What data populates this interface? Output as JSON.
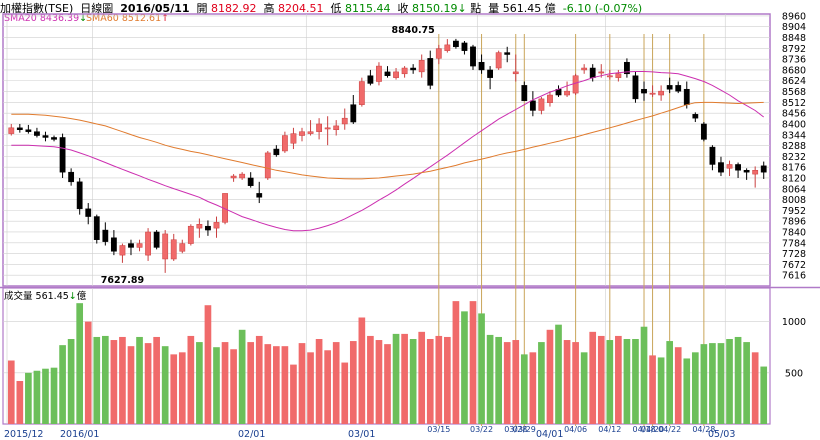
{
  "header": {
    "name": "加權指數(TSE)",
    "period": "日線圖",
    "date": "2016/05/11",
    "open_label": "開",
    "open": "8182.92",
    "high_label": "高",
    "high": "8204.51",
    "low_label": "低",
    "low": "8115.44",
    "close_label": "收",
    "close": "8150.19",
    "close_arrow": "↓",
    "unit": "點",
    "volume_label": "量",
    "volume": "561.45 億",
    "change": "-6.10 (-0.07%)"
  },
  "legend": {
    "sma20_label": "SMA20",
    "sma20_value": "8436.39",
    "sma20_arrow": "↓",
    "sma20_color": "#cc2fb0",
    "sma60_label": "SMA60",
    "sma60_value": "8512.61",
    "sma60_arrow": "↑",
    "sma60_color": "#e07b2e",
    "volume_label": "成交量",
    "volume_value": "561.45",
    "volume_arrow": "↓",
    "volume_unit": "億"
  },
  "colors": {
    "up": "#f06a6a",
    "down": "#000000",
    "vol_up": "#f06a6a",
    "vol_down": "#6cbf5a",
    "grid": "#cfcfcf",
    "event_line": "#c9a55a",
    "frame": "#b07ac8"
  },
  "chart_data": [
    {
      "type": "candlestick",
      "title": "加權指數(TSE) 日線圖",
      "y_ticks": [
        8960,
        8904,
        8848,
        8792,
        8736,
        8680,
        8624,
        8568,
        8512,
        8456,
        8400,
        8344,
        8288,
        8232,
        8176,
        8120,
        8064,
        8008,
        7952,
        7896,
        7840,
        7784,
        7728,
        7672,
        7616
      ],
      "ylim": [
        7560,
        8970
      ],
      "x_labels": [
        "2015/12",
        "2016/01",
        "02/01",
        "03/01",
        "04/01",
        "05/03"
      ],
      "annotations": [
        {
          "text": "8840.75",
          "x": 47,
          "y": 8840.75
        },
        {
          "text": "7627.89",
          "x": 13,
          "y": 7627.89
        }
      ],
      "ohlc": [
        [
          8350,
          8400,
          8340,
          8380
        ],
        [
          8380,
          8400,
          8355,
          8370
        ],
        [
          8370,
          8395,
          8350,
          8360
        ],
        [
          8360,
          8380,
          8330,
          8340
        ],
        [
          8340,
          8360,
          8310,
          8330
        ],
        [
          8330,
          8340,
          8310,
          8320
        ],
        [
          8330,
          8350,
          8120,
          8150
        ],
        [
          8150,
          8170,
          8080,
          8100
        ],
        [
          8100,
          8120,
          7930,
          7960
        ],
        [
          7960,
          7990,
          7880,
          7920
        ],
        [
          7920,
          7930,
          7780,
          7800
        ],
        [
          7850,
          7890,
          7770,
          7790
        ],
        [
          7810,
          7850,
          7720,
          7740
        ],
        [
          7720,
          7780,
          7680,
          7770
        ],
        [
          7780,
          7800,
          7720,
          7760
        ],
        [
          7760,
          7800,
          7740,
          7780
        ],
        [
          7720,
          7860,
          7690,
          7840
        ],
        [
          7840,
          7850,
          7750,
          7760
        ],
        [
          7700,
          7850,
          7628,
          7830
        ],
        [
          7700,
          7830,
          7690,
          7800
        ],
        [
          7740,
          7800,
          7730,
          7780
        ],
        [
          7780,
          7880,
          7770,
          7870
        ],
        [
          7860,
          7910,
          7810,
          7880
        ],
        [
          7870,
          7900,
          7820,
          7850
        ],
        [
          7860,
          7920,
          7810,
          7890
        ],
        [
          7890,
          8040,
          7880,
          8040
        ],
        [
          8120,
          8140,
          8100,
          8130
        ],
        [
          8120,
          8150,
          8110,
          8140
        ],
        [
          8120,
          8150,
          8070,
          8080
        ],
        [
          8040,
          8100,
          7990,
          8020
        ],
        [
          8120,
          8260,
          8110,
          8250
        ],
        [
          8270,
          8290,
          8230,
          8240
        ],
        [
          8260,
          8360,
          8250,
          8340
        ],
        [
          8300,
          8380,
          8270,
          8350
        ],
        [
          8340,
          8380,
          8310,
          8360
        ],
        [
          8350,
          8420,
          8340,
          8360
        ],
        [
          8360,
          8430,
          8320,
          8400
        ],
        [
          8380,
          8440,
          8290,
          8380
        ],
        [
          8370,
          8420,
          8340,
          8390
        ],
        [
          8400,
          8480,
          8370,
          8430
        ],
        [
          8500,
          8550,
          8400,
          8410
        ],
        [
          8500,
          8640,
          8490,
          8620
        ],
        [
          8650,
          8680,
          8600,
          8610
        ],
        [
          8620,
          8720,
          8600,
          8700
        ],
        [
          8670,
          8700,
          8640,
          8650
        ],
        [
          8640,
          8690,
          8630,
          8670
        ],
        [
          8660,
          8700,
          8640,
          8690
        ],
        [
          8690,
          8710,
          8660,
          8680
        ],
        [
          8670,
          8760,
          8640,
          8730
        ],
        [
          8740,
          8780,
          8580,
          8600
        ],
        [
          8740,
          8810,
          8710,
          8790
        ],
        [
          8780,
          8840,
          8770,
          8810
        ],
        [
          8830,
          8841,
          8790,
          8800
        ],
        [
          8820,
          8830,
          8760,
          8780
        ],
        [
          8800,
          8810,
          8680,
          8700
        ],
        [
          8720,
          8760,
          8660,
          8680
        ],
        [
          8680,
          8700,
          8580,
          8640
        ],
        [
          8690,
          8780,
          8680,
          8770
        ],
        [
          8770,
          8800,
          8720,
          8760
        ],
        [
          8660,
          8760,
          8620,
          8670
        ],
        [
          8600,
          8620,
          8520,
          8520
        ],
        [
          8520,
          8570,
          8440,
          8470
        ],
        [
          8470,
          8540,
          8450,
          8530
        ],
        [
          8510,
          8570,
          8490,
          8550
        ],
        [
          8580,
          8600,
          8540,
          8550
        ],
        [
          8550,
          8620,
          8540,
          8570
        ],
        [
          8560,
          8660,
          8550,
          8650
        ],
        [
          8680,
          8710,
          8660,
          8690
        ],
        [
          8690,
          8710,
          8620,
          8640
        ],
        [
          8670,
          8710,
          8640,
          8670
        ],
        [
          8650,
          8680,
          8630,
          8650
        ],
        [
          8640,
          8680,
          8620,
          8660
        ],
        [
          8720,
          8740,
          8640,
          8660
        ],
        [
          8650,
          8670,
          8510,
          8530
        ],
        [
          8580,
          8620,
          8520,
          8560
        ],
        [
          8560,
          8600,
          8540,
          8560
        ],
        [
          8550,
          8600,
          8520,
          8570
        ],
        [
          8600,
          8640,
          8560,
          8580
        ],
        [
          8600,
          8620,
          8560,
          8570
        ],
        [
          8580,
          8620,
          8480,
          8500
        ],
        [
          8450,
          8460,
          8410,
          8430
        ],
        [
          8400,
          8410,
          8310,
          8320
        ],
        [
          8280,
          8290,
          8160,
          8190
        ],
        [
          8200,
          8230,
          8130,
          8150
        ],
        [
          8170,
          8210,
          8130,
          8190
        ],
        [
          8190,
          8200,
          8120,
          8160
        ],
        [
          8160,
          8170,
          8110,
          8150
        ],
        [
          8140,
          8180,
          8070,
          8160
        ],
        [
          8183,
          8205,
          8115,
          8150
        ]
      ],
      "series": [
        {
          "name": "SMA20",
          "values": [
            8290,
            8290,
            8290,
            8287,
            8284,
            8282,
            8275,
            8265,
            8250,
            8235,
            8218,
            8200,
            8182,
            8165,
            8148,
            8131,
            8113,
            8097,
            8080,
            8065,
            8050,
            8035,
            8020,
            7998,
            7980,
            7960,
            7940,
            7920,
            7905,
            7890,
            7876,
            7864,
            7853,
            7846,
            7846,
            7850,
            7860,
            7873,
            7888,
            7908,
            7930,
            7952,
            7978,
            8005,
            8030,
            8058,
            8088,
            8118,
            8148,
            8178,
            8208,
            8238,
            8270,
            8303,
            8335,
            8365,
            8395,
            8425,
            8450,
            8475,
            8500,
            8525,
            8545,
            8565,
            8580,
            8598,
            8612,
            8625,
            8640,
            8650,
            8660,
            8665,
            8670,
            8672,
            8672,
            8670,
            8666,
            8664,
            8660,
            8648,
            8635,
            8620,
            8600,
            8575,
            8550,
            8520,
            8495,
            8470,
            8436
          ]
        },
        {
          "name": "SMA60",
          "values": [
            8450,
            8450,
            8450,
            8448,
            8445,
            8440,
            8435,
            8428,
            8420,
            8410,
            8400,
            8390,
            8375,
            8360,
            8345,
            8330,
            8318,
            8305,
            8290,
            8278,
            8268,
            8258,
            8250,
            8240,
            8230,
            8220,
            8210,
            8200,
            8190,
            8180,
            8170,
            8160,
            8152,
            8144,
            8136,
            8130,
            8125,
            8120,
            8118,
            8116,
            8115,
            8115,
            8118,
            8120,
            8125,
            8130,
            8135,
            8140,
            8148,
            8155,
            8165,
            8175,
            8185,
            8198,
            8208,
            8218,
            8228,
            8240,
            8250,
            8258,
            8268,
            8280,
            8290,
            8300,
            8310,
            8322,
            8332,
            8345,
            8356,
            8368,
            8380,
            8392,
            8405,
            8418,
            8430,
            8442,
            8456,
            8470,
            8485,
            8500,
            8510,
            8512,
            8512,
            8510,
            8508,
            8506,
            8508,
            8510,
            8512
          ]
        }
      ]
    },
    {
      "type": "bar",
      "title": "成交量",
      "unit": "億",
      "y_ticks": [
        1000,
        500
      ],
      "ylim": [
        0,
        1250
      ],
      "x_labels": [
        "2015/12",
        "2016/01",
        "02/01",
        "03/01",
        "03/15",
        "03/22",
        "03/28",
        "03/29",
        "04/06",
        "04/01",
        "04/12",
        "04/18",
        "04/20",
        "04/22",
        "04/28",
        "05/03"
      ],
      "values": [
        620,
        420,
        500,
        520,
        540,
        550,
        770,
        830,
        1180,
        1000,
        850,
        860,
        820,
        850,
        760,
        850,
        790,
        850,
        760,
        680,
        700,
        860,
        800,
        1160,
        750,
        800,
        730,
        920,
        800,
        860,
        780,
        760,
        760,
        580,
        790,
        700,
        830,
        720,
        800,
        600,
        810,
        1040,
        860,
        820,
        780,
        880,
        880,
        830,
        900,
        830,
        860,
        850,
        1200,
        1100,
        1200,
        1080,
        870,
        850,
        800,
        820,
        680,
        700,
        800,
        920,
        970,
        820,
        800,
        700,
        900,
        860,
        820,
        860,
        830,
        830,
        950,
        670,
        650,
        810,
        750,
        640,
        700,
        780,
        790,
        790,
        830,
        850,
        800,
        700,
        561
      ],
      "up_flags": [
        1,
        1,
        0,
        0,
        0,
        0,
        0,
        0,
        0,
        1,
        0,
        0,
        1,
        1,
        1,
        0,
        1,
        1,
        0,
        1,
        1,
        1,
        0,
        1,
        0,
        1,
        1,
        0,
        1,
        1,
        1,
        1,
        1,
        1,
        1,
        1,
        1,
        1,
        1,
        1,
        1,
        1,
        1,
        1,
        1,
        0,
        1,
        0,
        1,
        1,
        1,
        1,
        1,
        0,
        1,
        0,
        0,
        0,
        1,
        1,
        0,
        1,
        0,
        1,
        0,
        1,
        1,
        0,
        1,
        1,
        0,
        1,
        0,
        0,
        0,
        1,
        0,
        0,
        1,
        0,
        0,
        0,
        0,
        0,
        0,
        0,
        0,
        1,
        0
      ],
      "event_markers": [
        {
          "label": "03/15",
          "index": 50
        },
        {
          "label": "03/22",
          "index": 55
        },
        {
          "label": "03/28",
          "index": 59
        },
        {
          "label": "03/29",
          "index": 60
        },
        {
          "label": "04/06",
          "index": 66
        },
        {
          "label": "04/12",
          "index": 70
        },
        {
          "label": "04/18",
          "index": 74
        },
        {
          "label": "04/20",
          "index": 75
        },
        {
          "label": "04/22",
          "index": 77
        },
        {
          "label": "04/28",
          "index": 81
        }
      ]
    }
  ]
}
